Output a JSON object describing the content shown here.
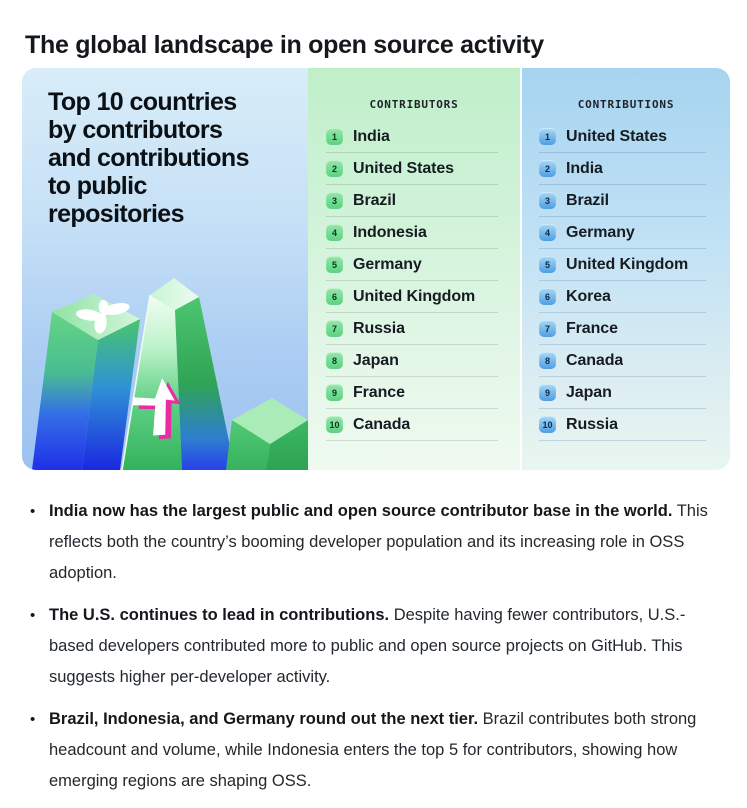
{
  "page_title": "The global landscape in open source activity",
  "infographic": {
    "panel_title_lines": [
      "Top 10 countries",
      "by contributors",
      "and contributions",
      "to public",
      "repositories"
    ],
    "columns": {
      "contributors": {
        "header": "CONTRIBUTORS",
        "items": [
          "India",
          "United States",
          "Brazil",
          "Indonesia",
          "Germany",
          "United Kingdom",
          "Russia",
          "Japan",
          "France",
          "Canada"
        ]
      },
      "contributions": {
        "header": "CONTRIBUTIONS",
        "items": [
          "United States",
          "India",
          "Brazil",
          "Germany",
          "United Kingdom",
          "Korea",
          "France",
          "Canada",
          "Japan",
          "Russia"
        ]
      }
    },
    "illustration_icons": [
      "clover-flower-icon",
      "up-arrow-icon"
    ]
  },
  "colors": {
    "badge_green": "#5bd281",
    "badge_blue": "#4f9de2",
    "bar_green": "#4cc671",
    "bar_blue": "#2233ee",
    "accent_magenta": "#ea2ba2",
    "panel_left_bg": "#b9d9f4",
    "panel_mid_bg": "#c9f1d2",
    "panel_right_bg": "#aed9f1"
  },
  "bullets": [
    {
      "lead": "India now has the largest public and open source contributor base in the world.",
      "rest": "This reflects both the country’s booming developer population and its increasing role in OSS adoption."
    },
    {
      "lead": "The U.S. continues to lead in contributions.",
      "rest": "Despite having fewer contributors, U.S.-based developers contributed more to public and open source projects on GitHub. This suggests higher per-developer activity."
    },
    {
      "lead": "Brazil, Indonesia, and Germany round out the next tier.",
      "rest": "Brazil contributes both strong headcount and volume, while Indonesia enters the top 5 for contributors, showing how emerging regions are shaping OSS."
    }
  ]
}
